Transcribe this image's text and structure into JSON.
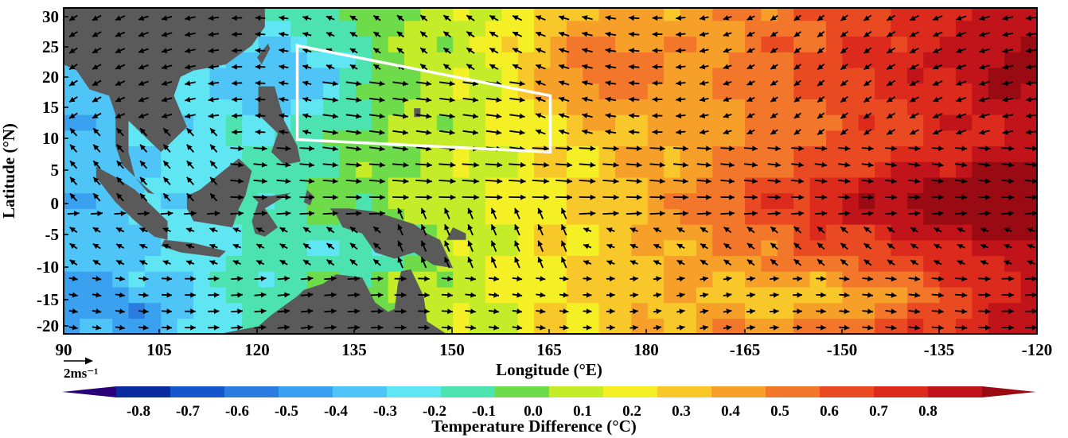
{
  "chart_data": {
    "type": "heatmap",
    "title": "",
    "xlabel": "Longitude (°E)",
    "ylabel": "Latitude (°N)",
    "x_ticks": [
      "90",
      "105",
      "120",
      "135",
      "150",
      "165",
      "180",
      "-165",
      "-150",
      "-135",
      "-120"
    ],
    "y_ticks": [
      "30",
      "25",
      "20",
      "15",
      "10",
      "5",
      "0",
      "-5",
      "-10",
      "-15",
      "-20"
    ],
    "x_range_deg_east": [
      90,
      240
    ],
    "y_range_deg_north": [
      -21,
      31
    ],
    "vector_reference": {
      "label": "2ms⁻¹",
      "speed": 2
    },
    "colorbar": {
      "label": "Temperature Difference (°C)",
      "tick_labels": [
        "-0.8",
        "-0.7",
        "-0.6",
        "-0.5",
        "-0.4",
        "-0.3",
        "-0.2",
        "-0.1",
        "0.0",
        "0.1",
        "0.2",
        "0.3",
        "0.4",
        "0.5",
        "0.6",
        "0.7",
        "0.8"
      ],
      "colors": [
        "#2a007a",
        "#0a2ba0",
        "#1556cc",
        "#2a7ce0",
        "#3aa0f0",
        "#4fc4f7",
        "#5fe6f2",
        "#4ce3b0",
        "#6edb4a",
        "#c4ec28",
        "#f5ef25",
        "#f8c72a",
        "#f6a02a",
        "#f2772a",
        "#ea4a22",
        "#dc2a1c",
        "#c0141a",
        "#9a0a12"
      ]
    },
    "land_color": "#5a5a5a",
    "highlight_box": {
      "vertices_lon_lat": [
        [
          126,
          25
        ],
        [
          165,
          17
        ],
        [
          165,
          8
        ],
        [
          126,
          10
        ]
      ],
      "color": "#ffffff"
    },
    "grid": false
  }
}
